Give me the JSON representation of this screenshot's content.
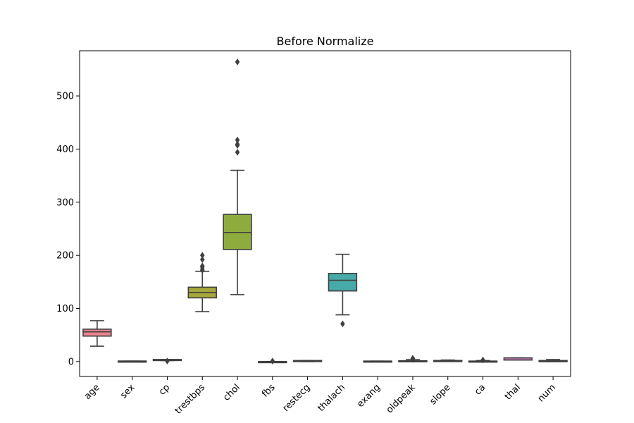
{
  "chart_data": {
    "type": "boxplot",
    "title": "Before Normalize",
    "xlabel": "",
    "ylabel": "",
    "ylim": [
      -28,
      585
    ],
    "yticks": [
      0,
      100,
      200,
      300,
      400,
      500
    ],
    "grid": false,
    "legend": "none",
    "categories": [
      "age",
      "sex",
      "cp",
      "trestbps",
      "chol",
      "fbs",
      "restecg",
      "thalach",
      "exang",
      "oldpeak",
      "slope",
      "ca",
      "thal",
      "num"
    ],
    "series": [
      {
        "category": "age",
        "color": "#e8848e",
        "whisker_low": 29,
        "q1": 48,
        "median": 56,
        "q3": 61,
        "whisker_high": 77,
        "outliers": []
      },
      {
        "category": "sex",
        "color": "#d99a4e",
        "whisker_low": 0,
        "q1": 0,
        "median": 1,
        "q3": 1,
        "whisker_high": 1,
        "outliers": []
      },
      {
        "category": "cp",
        "color": "#c0a23c",
        "whisker_low": 2,
        "q1": 3,
        "median": 3,
        "q3": 4,
        "whisker_high": 4,
        "outliers": [
          1
        ]
      },
      {
        "category": "trestbps",
        "color": "#a7a83c",
        "whisker_low": 94,
        "q1": 120,
        "median": 130,
        "q3": 140,
        "whisker_high": 170,
        "outliers": [
          172,
          174,
          178,
          180,
          192,
          200
        ]
      },
      {
        "category": "chol",
        "color": "#8eac3e",
        "whisker_low": 126,
        "q1": 211,
        "median": 243,
        "q3": 277,
        "whisker_high": 360,
        "outliers": [
          394,
          407,
          409,
          417,
          564
        ]
      },
      {
        "category": "fbs",
        "color": "#5aa75c",
        "whisker_low": 0,
        "q1": 0,
        "median": 0,
        "q3": 0,
        "whisker_high": 0,
        "outliers": [
          1
        ]
      },
      {
        "category": "restecg",
        "color": "#4aab8c",
        "whisker_low": 0,
        "q1": 0,
        "median": 1,
        "q3": 2,
        "whisker_high": 2,
        "outliers": []
      },
      {
        "category": "thalach",
        "color": "#47aaa8",
        "whisker_low": 88,
        "q1": 133,
        "median": 153,
        "q3": 166,
        "whisker_high": 202,
        "outliers": [
          71
        ]
      },
      {
        "category": "exang",
        "color": "#4aa6c2",
        "whisker_low": 0,
        "q1": 0,
        "median": 0,
        "q3": 1,
        "whisker_high": 1,
        "outliers": []
      },
      {
        "category": "oldpeak",
        "color": "#6aa0d8",
        "whisker_low": 0,
        "q1": 0,
        "median": 0.8,
        "q3": 1.6,
        "whisker_high": 4,
        "outliers": [
          4.2,
          5.6,
          6.2
        ]
      },
      {
        "category": "slope",
        "color": "#9c96e0",
        "whisker_low": 1,
        "q1": 1,
        "median": 2,
        "q3": 2,
        "whisker_high": 3,
        "outliers": []
      },
      {
        "category": "ca",
        "color": "#c18be0",
        "whisker_low": 0,
        "q1": 0,
        "median": 0,
        "q3": 1,
        "whisker_high": 2,
        "outliers": [
          3
        ]
      },
      {
        "category": "thal",
        "color": "#db85c8",
        "whisker_low": 3,
        "q1": 3,
        "median": 3,
        "q3": 7,
        "whisker_high": 7,
        "outliers": []
      },
      {
        "category": "num",
        "color": "#e886a6",
        "whisker_low": 0,
        "q1": 0,
        "median": 0,
        "q3": 2,
        "whisker_high": 4,
        "outliers": []
      }
    ]
  }
}
